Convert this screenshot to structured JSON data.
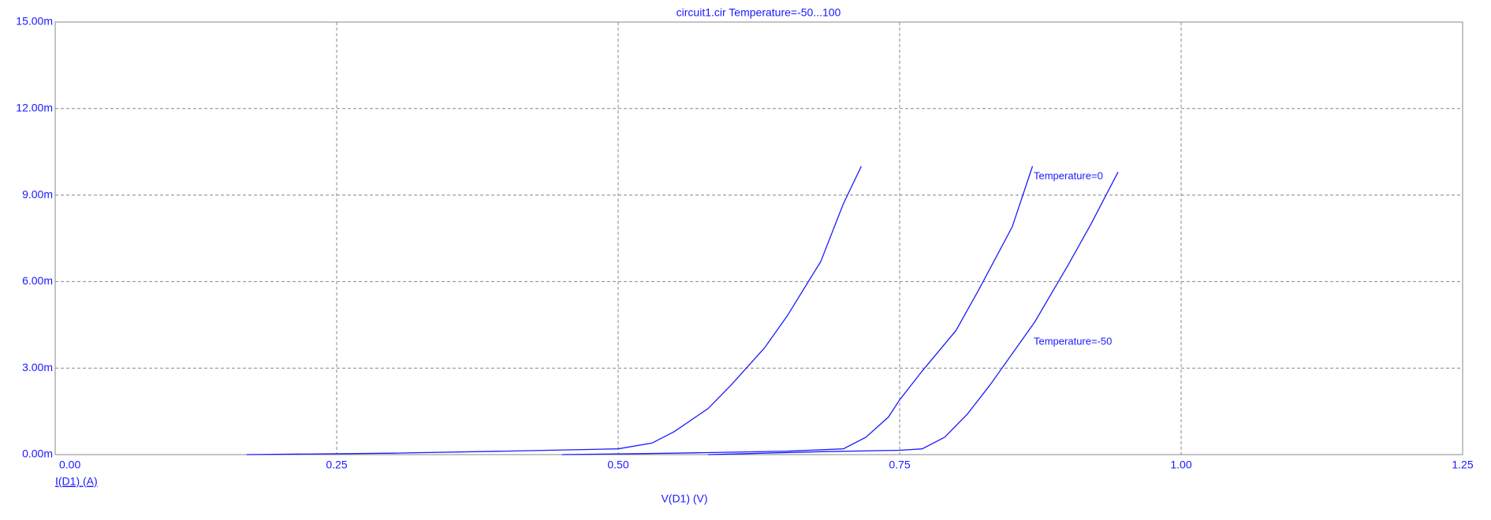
{
  "chart_data": {
    "type": "line",
    "title": "circuit1.cir Temperature=-50...100",
    "x_label": "V(D1) (V)",
    "y_label": "I(D1) (A)",
    "xlim": [
      0,
      1.25
    ],
    "ylim": [
      0,
      0.015
    ],
    "xticks": [
      {
        "value": 0,
        "label": "0.00"
      },
      0.25,
      {
        "value": 0.5,
        "label": "0.50"
      },
      0.75,
      {
        "value": 1,
        "label": "1.00"
      },
      1.25
    ],
    "yticks": [
      {
        "value": 0,
        "label": "0.00m"
      },
      {
        "value": 0.003,
        "label": "3.00m"
      },
      {
        "value": 0.006,
        "label": "6.00m"
      },
      {
        "value": 0.009,
        "label": "9.00m"
      },
      {
        "value": 0.012,
        "label": "12.00m"
      },
      {
        "value": 0.015,
        "label": "15.00m"
      }
    ],
    "grid": true,
    "series": [
      {
        "color": "#1a1aff",
        "x": [
          0.17,
          0.3,
          0.4,
          0.5,
          0.53,
          0.55,
          0.58,
          0.6,
          0.63,
          0.65,
          0.68,
          0.7,
          0.716
        ],
        "values": [
          0,
          5e-05,
          0.00012,
          0.0002,
          0.0004,
          0.0008,
          0.0016,
          0.0024,
          0.0037,
          0.0048,
          0.0067,
          0.0087,
          0.01
        ]
      },
      {
        "color": "#1a1aff",
        "x": [
          0.45,
          0.55,
          0.65,
          0.7,
          0.72,
          0.74,
          0.75,
          0.77,
          0.8,
          0.82,
          0.85,
          0.868
        ],
        "values": [
          0,
          5e-05,
          0.00012,
          0.0002,
          0.0006,
          0.0013,
          0.0019,
          0.0029,
          0.0043,
          0.0057,
          0.0079,
          0.01
        ]
      },
      {
        "color": "#1a1aff",
        "x": [
          0.58,
          0.68,
          0.75,
          0.77,
          0.79,
          0.81,
          0.83,
          0.85,
          0.87,
          0.9,
          0.92,
          0.944
        ],
        "values": [
          0,
          0.0001,
          0.00015,
          0.0002,
          0.0006,
          0.0014,
          0.0024,
          0.0035,
          0.0046,
          0.0066,
          0.008,
          0.0098
        ]
      }
    ],
    "annotations": [
      "Temperature=0",
      "Temperature=-50"
    ]
  }
}
